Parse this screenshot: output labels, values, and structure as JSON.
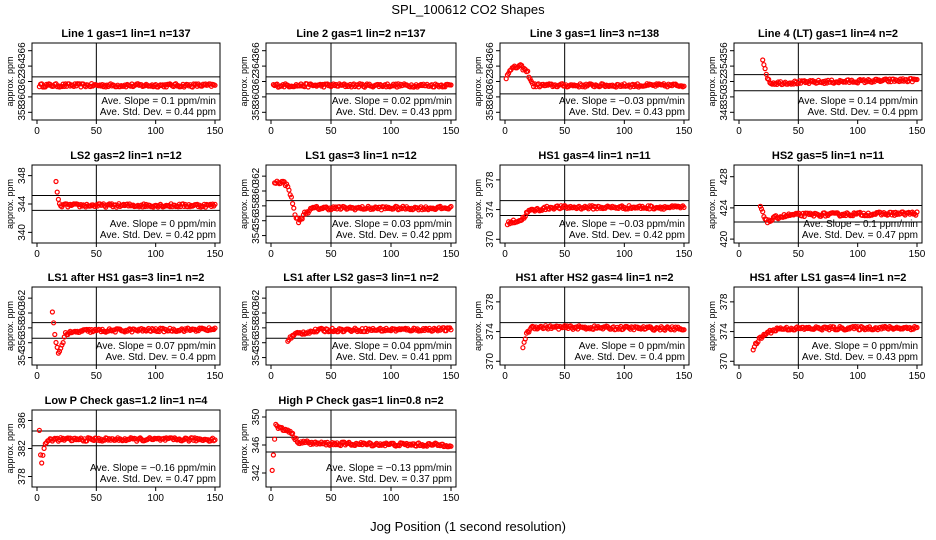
{
  "title": "SPL_100612  CO2 Shapes",
  "xlabel": "Jog Position (1 second resolution)",
  "colors": {
    "points": "#ff0000",
    "lines": "#000000",
    "background": "#ffffff"
  },
  "chart_data": [
    {
      "type": "scatter",
      "title": "Line 1 gas=1 lin=1 n=137",
      "ylabel": "approx. ppm",
      "xlim": [
        0,
        150
      ],
      "ylim": [
        357,
        367
      ],
      "yticks": [
        358,
        360,
        362,
        364,
        366
      ],
      "xticks": [
        0,
        50,
        100,
        150
      ],
      "hlines": [
        362.6,
        360.4
      ],
      "vline": 50,
      "slope": "Ave. Slope =  0.1  ppm/min",
      "stddev": "Ave. Std. Dev. =  0.44  ppm",
      "series": [
        {
          "x_start": 2,
          "x_end": 150,
          "shape": [
            [
              0,
              361.5
            ],
            [
              1,
              361.5
            ]
          ]
        }
      ]
    },
    {
      "type": "scatter",
      "title": "Line 2 gas=1 lin=2 n=137",
      "ylabel": "approx. ppm",
      "xlim": [
        0,
        150
      ],
      "ylim": [
        357,
        367
      ],
      "yticks": [
        358,
        360,
        362,
        364,
        366
      ],
      "xticks": [
        0,
        50,
        100,
        150
      ],
      "hlines": [
        362.6,
        360.4
      ],
      "vline": 50,
      "slope": "Ave. Slope =  0.02  ppm/min",
      "stddev": "Ave. Std. Dev. =  0.43  ppm",
      "series": [
        {
          "x_start": 2,
          "x_end": 150,
          "shape": [
            [
              0,
              361.5
            ],
            [
              1,
              361.5
            ]
          ]
        }
      ]
    },
    {
      "type": "scatter",
      "title": "Line 3 gas=1 lin=3 n=138",
      "ylabel": "approx. ppm",
      "xlim": [
        0,
        150
      ],
      "ylim": [
        357,
        367
      ],
      "yticks": [
        358,
        360,
        362,
        364,
        366
      ],
      "xticks": [
        0,
        50,
        100,
        150
      ],
      "hlines": [
        362.6,
        360.4
      ],
      "vline": 50,
      "slope": "Ave. Slope =  −0.03  ppm/min",
      "stddev": "Ave. Std. Dev. =  0.43  ppm",
      "series": [
        {
          "x_start": 1,
          "x_end": 150,
          "shape": [
            [
              0,
              362.5
            ],
            [
              0.02,
              363.6
            ],
            [
              0.08,
              364
            ],
            [
              0.12,
              363.2
            ],
            [
              0.15,
              361.5
            ],
            [
              1,
              361.5
            ]
          ]
        }
      ]
    },
    {
      "type": "scatter",
      "title": "Line 4 (LT) gas=1 lin=4 n=2",
      "ylabel": "approx. ppm",
      "xlim": [
        0,
        150
      ],
      "ylim": [
        347,
        357
      ],
      "yticks": [
        348,
        350,
        352,
        354,
        356
      ],
      "xticks": [
        0,
        50,
        100,
        150
      ],
      "hlines": [
        352.9,
        350.8
      ],
      "vline": 50,
      "slope": "Ave. Slope =  0.14  ppm/min",
      "stddev": "Ave. Std. Dev. =  0.4  ppm",
      "series": [
        {
          "x_start": 20,
          "x_end": 150,
          "shape": [
            [
              0,
              355
            ],
            [
              0.02,
              353
            ],
            [
              0.05,
              351.8
            ],
            [
              1,
              352.2
            ]
          ]
        }
      ]
    },
    {
      "type": "scatter",
      "title": "LS2 gas=2 lin=1 n=12",
      "ylabel": "approx. ppm",
      "xlim": [
        0,
        150
      ],
      "ylim": [
        338.5,
        349.5
      ],
      "yticks": [
        340,
        344,
        348
      ],
      "xticks": [
        0,
        50,
        100,
        150
      ],
      "hlines": [
        345.2,
        343.1
      ],
      "vline": 50,
      "slope": "Ave. Slope =  0  ppm/min",
      "stddev": "Ave. Std. Dev. =  0.42  ppm",
      "series": [
        {
          "x_start": 16,
          "x_end": 150,
          "shape": [
            [
              0,
              347
            ],
            [
              0.02,
              343.8
            ],
            [
              1,
              343.8
            ]
          ]
        }
      ]
    },
    {
      "type": "scatter",
      "title": "LS1 gas=3 lin=1 n=12",
      "ylabel": "approx. ppm",
      "xlim": [
        0,
        150
      ],
      "ylim": [
        353,
        363.5
      ],
      "yticks": [
        354,
        356,
        358,
        360,
        362
      ],
      "xticks": [
        0,
        50,
        100,
        150
      ],
      "hlines": [
        358.7,
        356.6
      ],
      "vline": 50,
      "slope": "Ave. Slope =  0.03  ppm/min",
      "stddev": "Ave. Std. Dev. =  0.42  ppm",
      "series": [
        {
          "x_start": 3,
          "x_end": 150,
          "shape": [
            [
              0,
              361.2
            ],
            [
              0.05,
              361.2
            ],
            [
              0.08,
              360.5
            ],
            [
              0.1,
              358.5
            ],
            [
              0.12,
              356.5
            ],
            [
              0.14,
              355.8
            ],
            [
              0.17,
              357
            ],
            [
              0.22,
              357.7
            ],
            [
              1,
              357.7
            ]
          ]
        }
      ]
    },
    {
      "type": "scatter",
      "title": "HS1 gas=4 lin=1 n=11",
      "ylabel": "approx. ppm",
      "xlim": [
        0,
        150
      ],
      "ylim": [
        369.5,
        380
      ],
      "yticks": [
        370,
        374,
        378
      ],
      "xticks": [
        0,
        50,
        100,
        150
      ],
      "hlines": [
        375.2,
        373.2
      ],
      "vline": 50,
      "slope": "Ave. Slope =  −0.03  ppm/min",
      "stddev": "Ave. Std. Dev. =  0.42  ppm",
      "series": [
        {
          "x_start": 2,
          "x_end": 150,
          "shape": [
            [
              0,
              372.2
            ],
            [
              0.08,
              372.6
            ],
            [
              0.12,
              373.8
            ],
            [
              0.25,
              374.3
            ],
            [
              1,
              374.3
            ]
          ]
        }
      ]
    },
    {
      "type": "scatter",
      "title": "HS2 gas=5 lin=1 n=11",
      "ylabel": "approx. ppm",
      "xlim": [
        0,
        150
      ],
      "ylim": [
        419.5,
        429.5
      ],
      "yticks": [
        420,
        424,
        428
      ],
      "xticks": [
        0,
        50,
        100,
        150
      ],
      "hlines": [
        424.3,
        422.2
      ],
      "vline": 50,
      "slope": "Ave. Slope =  0.1  ppm/min",
      "stddev": "Ave. Std. Dev. =  0.47  ppm",
      "series": [
        {
          "x_start": 18,
          "x_end": 150,
          "shape": [
            [
              0,
              424.2
            ],
            [
              0.02,
              423
            ],
            [
              0.05,
              422.2
            ],
            [
              0.1,
              422.8
            ],
            [
              0.2,
              423.1
            ],
            [
              1,
              423.3
            ]
          ]
        }
      ]
    },
    {
      "type": "scatter",
      "title": "LS1 after HS1 gas=3 lin=1 n=2",
      "ylabel": "approx. ppm",
      "xlim": [
        0,
        150
      ],
      "ylim": [
        353,
        363.5
      ],
      "yticks": [
        354,
        356,
        358,
        360,
        362
      ],
      "xticks": [
        0,
        50,
        100,
        150
      ],
      "hlines": [
        358.7,
        356.6
      ],
      "vline": 50,
      "slope": "Ave. Slope =  0.07  ppm/min",
      "stddev": "Ave. Std. Dev. =  0.4  ppm",
      "series": [
        {
          "x_start": 13,
          "x_end": 150,
          "shape": [
            [
              0,
              360
            ],
            [
              0.02,
              356
            ],
            [
              0.04,
              354.5
            ],
            [
              0.08,
              357.2
            ],
            [
              0.2,
              357.6
            ],
            [
              1,
              357.8
            ]
          ]
        }
      ]
    },
    {
      "type": "scatter",
      "title": "LS1 after LS2 gas=3 lin=1 n=2",
      "ylabel": "approx. ppm",
      "xlim": [
        0,
        150
      ],
      "ylim": [
        353,
        363.5
      ],
      "yticks": [
        354,
        356,
        358,
        360,
        362
      ],
      "xticks": [
        0,
        50,
        100,
        150
      ],
      "hlines": [
        358.7,
        356.6
      ],
      "vline": 50,
      "slope": "Ave. Slope =  0.04  ppm/min",
      "stddev": "Ave. Std. Dev. =  0.41  ppm",
      "series": [
        {
          "x_start": 14,
          "x_end": 150,
          "shape": [
            [
              0,
              356.4
            ],
            [
              0.05,
              357.2
            ],
            [
              0.2,
              357.7
            ],
            [
              1,
              357.8
            ]
          ]
        }
      ]
    },
    {
      "type": "scatter",
      "title": "HS1 after HS2 gas=4 lin=1 n=2",
      "ylabel": "approx. ppm",
      "xlim": [
        0,
        150
      ],
      "ylim": [
        369.5,
        380
      ],
      "yticks": [
        370,
        374,
        378
      ],
      "xticks": [
        0,
        50,
        100,
        150
      ],
      "hlines": [
        375.2,
        373.2
      ],
      "vline": 50,
      "slope": "Ave. Slope =  0  ppm/min",
      "stddev": "Ave. Std. Dev. =  0.4  ppm",
      "series": [
        {
          "x_start": 15,
          "x_end": 150,
          "shape": [
            [
              0,
              372
            ],
            [
              0.02,
              373.5
            ],
            [
              0.05,
              374.6
            ],
            [
              1,
              374.4
            ]
          ]
        }
      ]
    },
    {
      "type": "scatter",
      "title": "HS1 after LS1 gas=4 lin=1 n=2",
      "ylabel": "approx. ppm",
      "xlim": [
        0,
        150
      ],
      "ylim": [
        369.5,
        380
      ],
      "yticks": [
        370,
        374,
        378
      ],
      "xticks": [
        0,
        50,
        100,
        150
      ],
      "hlines": [
        375.2,
        373.2
      ],
      "vline": 50,
      "slope": "Ave. Slope =  0  ppm/min",
      "stddev": "Ave. Std. Dev. =  0.43  ppm",
      "series": [
        {
          "x_start": 12,
          "x_end": 150,
          "shape": [
            [
              0,
              371.6
            ],
            [
              0.03,
              372.8
            ],
            [
              0.08,
              373.8
            ],
            [
              0.15,
              374.4
            ],
            [
              1,
              374.5
            ]
          ]
        }
      ]
    },
    {
      "type": "scatter",
      "title": "Low P Check gas=1.2 lin=1 n=4",
      "ylabel": "approx. ppm",
      "xlim": [
        0,
        150
      ],
      "ylim": [
        376.5,
        387.5
      ],
      "yticks": [
        378,
        382,
        386
      ],
      "xticks": [
        0,
        50,
        100,
        150
      ],
      "hlines": [
        384.5,
        382.4
      ],
      "vline": 50,
      "slope": "Ave. Slope =  −0.16  ppm/min",
      "stddev": "Ave. Std. Dev. =  0.47  ppm",
      "series": [
        {
          "x_start": 2,
          "x_end": 150,
          "shape": [
            [
              0,
              384.6
            ],
            [
              0.01,
              379.5
            ],
            [
              0.03,
              382.5
            ],
            [
              0.06,
              383.3
            ],
            [
              1,
              383.3
            ]
          ]
        }
      ]
    },
    {
      "type": "scatter",
      "title": "High P Check gas=1 lin=0.8 n=2",
      "ylabel": "approx. ppm",
      "xlim": [
        0,
        150
      ],
      "ylim": [
        340,
        351
      ],
      "yticks": [
        342,
        346,
        350
      ],
      "xticks": [
        0,
        50,
        100,
        150
      ],
      "hlines": [
        347.1,
        345
      ],
      "vline": 50,
      "slope": "Ave. Slope =  −0.13  ppm/min",
      "stddev": "Ave. Std. Dev. =  0.37  ppm",
      "series": [
        {
          "x_start": 1,
          "x_end": 150,
          "shape": [
            [
              0,
              342.5
            ],
            [
              0.02,
              348.8
            ],
            [
              0.05,
              348.3
            ],
            [
              0.1,
              348
            ],
            [
              0.14,
              346.5
            ],
            [
              0.25,
              346.2
            ],
            [
              1,
              346
            ]
          ]
        }
      ]
    }
  ]
}
